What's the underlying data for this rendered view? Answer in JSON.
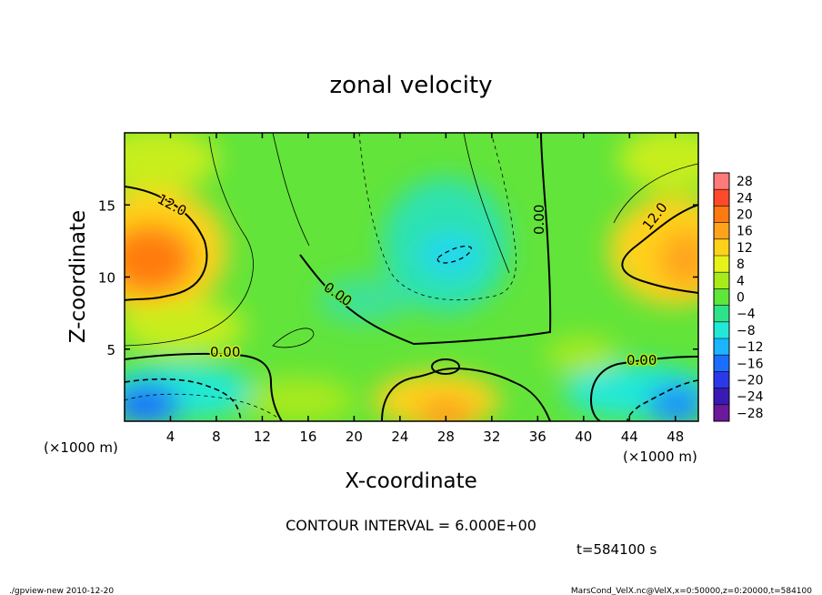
{
  "chart_data": {
    "type": "heatmap",
    "title": "zonal velocity",
    "xlabel": "X-coordinate",
    "ylabel": "Z-coordinate",
    "x_unit": "(×1000 m)",
    "y_unit": "(×1000 m)",
    "xlim": [
      0,
      50
    ],
    "ylim": [
      0,
      20
    ],
    "x_ticks": [
      "4",
      "8",
      "12",
      "16",
      "20",
      "24",
      "28",
      "32",
      "36",
      "40",
      "44",
      "48"
    ],
    "y_ticks": [
      "5",
      "10",
      "15"
    ],
    "colorbar": {
      "labels": [
        "28",
        "24",
        "20",
        "16",
        "12",
        "8",
        "4",
        "0",
        "-4",
        "-8",
        "-12",
        "-16",
        "-20",
        "-24",
        "-28"
      ],
      "colors": [
        "#ff7a7a",
        "#ff4a2a",
        "#ff7a10",
        "#ffa41a",
        "#ffd21a",
        "#e6f21a",
        "#a8ea1a",
        "#5ee63a",
        "#2ee28a",
        "#22e8d8",
        "#1ab4ff",
        "#1a6eff",
        "#2a3ae8",
        "#3a1ab4",
        "#6a1a9a"
      ]
    },
    "contour_labels": [
      "12.0",
      "12.0",
      "0.00",
      "0.00",
      "0.00",
      "0.00"
    ],
    "contour_interval": "CONTOUR INTERVAL = 6.000E+00",
    "time_label": "t=584100 s"
  },
  "footer": {
    "left": "./gpview-new  2010-12-20",
    "right": "MarsCond_VelX.nc@VelX,x=0:50000,z=0:20000,t=584100"
  }
}
